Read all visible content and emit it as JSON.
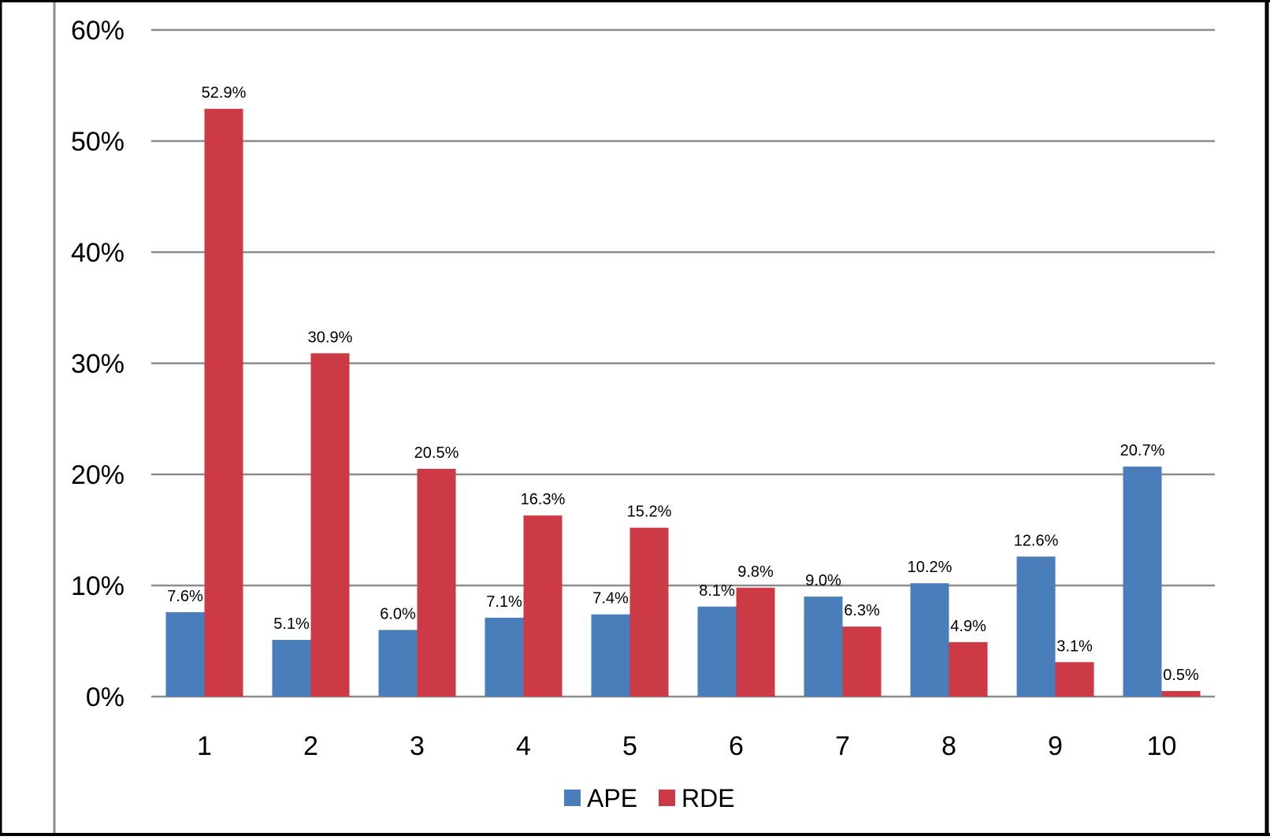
{
  "chart_data": {
    "type": "bar",
    "categories": [
      "1",
      "2",
      "3",
      "4",
      "5",
      "6",
      "7",
      "8",
      "9",
      "10"
    ],
    "series": [
      {
        "name": "APE",
        "color": "#4A7EBB",
        "values": [
          7.6,
          5.1,
          6.0,
          7.1,
          7.4,
          8.1,
          9.0,
          10.2,
          12.6,
          20.7
        ],
        "labels": [
          "7.6%",
          "5.1%",
          "6.0%",
          "7.1%",
          "7.4%",
          "8.1%",
          "9.0%",
          "10.2%",
          "12.6%",
          "20.7%"
        ]
      },
      {
        "name": "RDE",
        "color": "#CC3A45",
        "values": [
          52.9,
          30.9,
          20.5,
          16.3,
          15.2,
          9.8,
          6.3,
          4.9,
          3.1,
          0.5
        ],
        "labels": [
          "52.9%",
          "30.9%",
          "20.5%",
          "16.3%",
          "15.2%",
          "9.8%",
          "6.3%",
          "4.9%",
          "3.1%",
          "0.5%"
        ]
      }
    ],
    "ylim": [
      0,
      60
    ],
    "yticks": [
      0,
      10,
      20,
      30,
      40,
      50,
      60
    ],
    "ytick_labels": [
      "0%",
      "10%",
      "20%",
      "30%",
      "40%",
      "50%",
      "60%"
    ],
    "grid": true,
    "legend_position": "bottom-center",
    "gridline_color": "#8C8C8C",
    "frame_color": "#000000"
  }
}
